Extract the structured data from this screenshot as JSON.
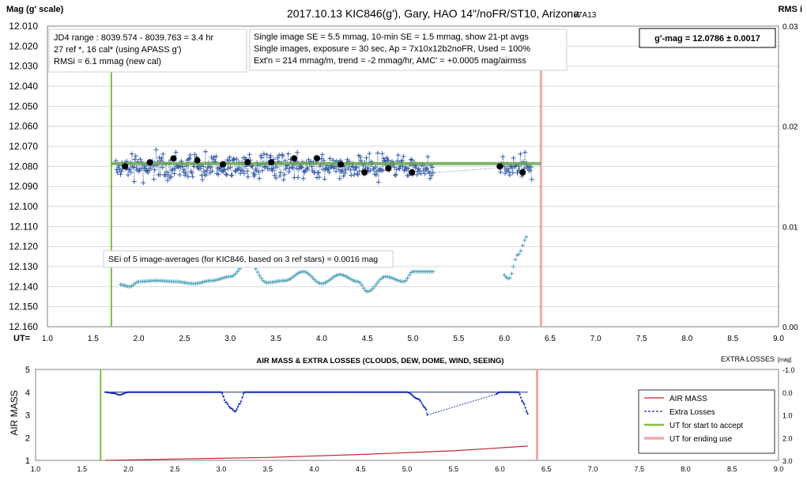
{
  "top": {
    "title": "2017.10.13  KIC846(g'),  Gary,  HAO  14\"/noFR/ST10,  Arizona",
    "version": "v7A13",
    "ylabel_left": "Mag (g' scale)",
    "ylabel_right": "RMS i",
    "xlabel": "UT=",
    "info_box_1": [
      "JD4 range : 8039.574 - 8039.763 =  3.4  hr",
      "27 ref *, 16 cal* (using APASS g')",
      "RMSi = 6.1 mmag (new cal)"
    ],
    "info_box_2": [
      "Single image SE = 5.5 mmag, 10-min SE = 1.5 mmag, show 21-pt avgs",
      "Single images, exposure = 30 sec, Ap = 7x10x12b2noFR, Used = 100%",
      "Ext'n = 214 mmag/m, trend =  -2 mmag/hr, AMC' = +0.0005 mag/airmss"
    ],
    "result_box": "g'-mag = 12.0786 ± 0.0017",
    "sei_box": "SEi of 5 image-averages (for KIC846, based on 3 ref stars) = 0.0016 mag"
  },
  "bottom": {
    "title": "AIR MASS & EXTRA LOSSES (CLOUDS, DEW, DOME, WIND, SEEING)",
    "ylabel_left": "AIR MASS",
    "ylabel_right": "EXTRA LOSSES",
    "ylabel_right_unit": "[mag]",
    "legend": [
      "AIR MASS",
      "Extra Losses",
      "UT for start to accept",
      "UT for ending use"
    ]
  },
  "colors": {
    "single": "#3a5fa8",
    "avg": "#000000",
    "fit": "#6aa84f",
    "rms": "#4aa0b8",
    "start": "#7cc241",
    "end": "#f2a8a8",
    "airmass": "#c0282d",
    "losses": "#1a2fb4"
  },
  "chart_data": [
    {
      "type": "scatter",
      "title": "2017.10.13  KIC846(g'),  Gary,  HAO  14\"/noFR/ST10,  Arizona",
      "xlabel": "UT=",
      "ylabel": "Mag (g' scale)",
      "y2label": "RMS i",
      "xlim": [
        1.0,
        9.0
      ],
      "ylim": [
        12.01,
        12.16
      ],
      "y_inverted": true,
      "y2lim": [
        0.0,
        0.03
      ],
      "xticks": [
        "1.0",
        "1.5",
        "2.0",
        "2.5",
        "3.0",
        "3.5",
        "4.0",
        "4.5",
        "5.0",
        "5.5",
        "6.0",
        "6.5",
        "7.0",
        "7.5",
        "8.0",
        "8.5",
        "9.0"
      ],
      "yticks": [
        "12.010",
        "12.020",
        "12.030",
        "12.040",
        "12.050",
        "12.060",
        "12.070",
        "12.080",
        "12.090",
        "12.100",
        "12.110",
        "12.120",
        "12.130",
        "12.140",
        "12.150",
        "12.160"
      ],
      "y2ticks": [
        "0.03",
        "0.02",
        "0.01",
        "0.00"
      ],
      "ut_start": 1.7,
      "ut_end": 6.4,
      "fit_mag": 12.0786,
      "single_image_range": [
        [
          1.75,
          5.22
        ],
        [
          5.95,
          6.3
        ]
      ],
      "single_image_mag_center": 12.08,
      "single_image_mag_spread": 0.012,
      "series": [
        {
          "name": "21-pt avgs",
          "x": [
            1.85,
            2.12,
            2.38,
            2.64,
            2.92,
            3.19,
            3.45,
            3.7,
            3.95,
            4.21,
            4.47,
            4.73,
            4.99,
            5.95,
            6.2
          ],
          "y": [
            12.08,
            12.078,
            12.076,
            12.077,
            12.079,
            12.078,
            12.078,
            12.076,
            12.076,
            12.079,
            12.083,
            12.081,
            12.083,
            12.08,
            12.083
          ]
        },
        {
          "name": "RMS i",
          "x": [
            1.8,
            1.9,
            2.0,
            2.2,
            2.4,
            2.6,
            2.8,
            3.0,
            3.2,
            3.4,
            3.6,
            3.8,
            4.0,
            4.2,
            4.4,
            4.5,
            4.7,
            4.9,
            5.0,
            5.2,
            5.95,
            6.05,
            6.15,
            6.25
          ],
          "y": [
            0.0042,
            0.004,
            0.0045,
            0.0046,
            0.0045,
            0.0043,
            0.0046,
            0.005,
            0.0065,
            0.0044,
            0.0046,
            0.0055,
            0.0043,
            0.0052,
            0.0045,
            0.0035,
            0.005,
            0.0045,
            0.0055,
            0.0055,
            0.0055,
            0.0048,
            0.0072,
            0.009
          ]
        }
      ]
    },
    {
      "type": "line",
      "title": "AIR MASS & EXTRA LOSSES (CLOUDS, DEW, DOME, WIND, SEEING)",
      "ylabel": "AIR MASS",
      "y2label": "EXTRA LOSSES [mag]",
      "xlim": [
        1.0,
        9.0
      ],
      "ylim": [
        1,
        5
      ],
      "y2lim": [
        -1.0,
        3.0
      ],
      "y2_inverted": true,
      "xticks": [
        "1.0",
        "1.5",
        "2.0",
        "2.5",
        "3.0",
        "3.5",
        "4.0",
        "4.5",
        "5.0",
        "5.5",
        "6.0",
        "6.5",
        "7.0",
        "7.5",
        "8.0",
        "8.5",
        "9.0"
      ],
      "yticks": [
        "5",
        "4",
        "3",
        "2",
        "1"
      ],
      "y2ticks": [
        "-1.0",
        "0.0",
        "1.0",
        "2.0",
        "3.0"
      ],
      "ut_start": 1.7,
      "ut_end": 6.4,
      "series": [
        {
          "name": "AIR MASS",
          "x": [
            1.75,
            2.5,
            3.5,
            4.5,
            5.5,
            6.3
          ],
          "y": [
            1.0,
            1.06,
            1.13,
            1.26,
            1.42,
            1.63
          ]
        },
        {
          "name": "Extra Losses",
          "x": [
            1.75,
            1.85,
            1.9,
            2.0,
            2.5,
            3.0,
            3.05,
            3.1,
            3.15,
            3.2,
            3.25,
            3.3,
            3.5,
            4.0,
            5.0,
            5.12,
            5.2,
            5.22,
            5.95,
            6.0,
            6.2,
            6.25,
            6.3
          ],
          "y": [
            0.0,
            0.05,
            0.12,
            0.0,
            0.0,
            0.0,
            0.45,
            0.7,
            0.85,
            0.5,
            0.0,
            0.0,
            0.0,
            0.0,
            0.0,
            0.3,
            0.7,
            1.0,
            0.1,
            0.0,
            0.0,
            0.45,
            0.95
          ]
        }
      ]
    }
  ]
}
